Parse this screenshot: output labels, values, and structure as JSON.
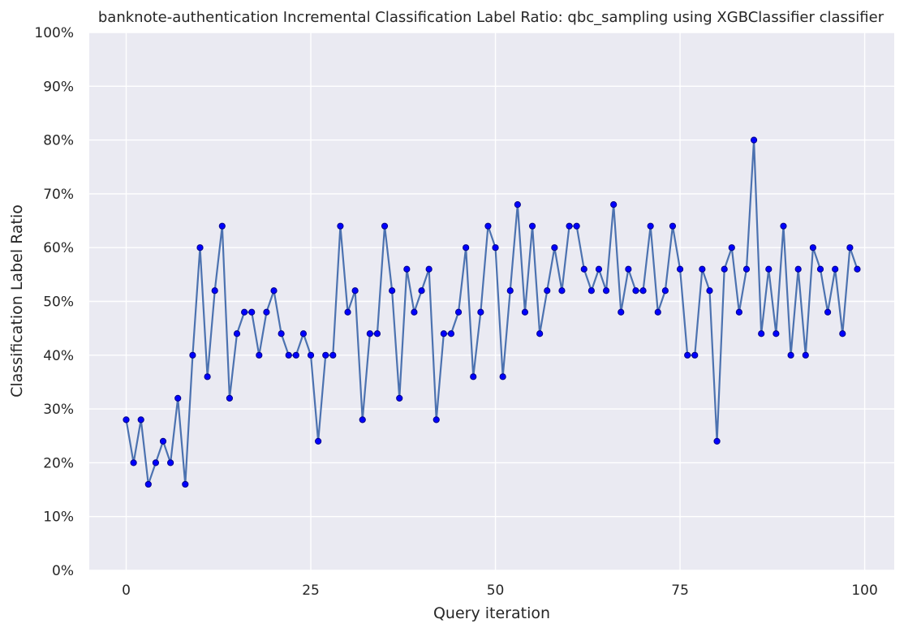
{
  "chart_data": {
    "type": "line",
    "title": "banknote-authentication Incremental Classification Label Ratio: qbc_sampling using XGBClassifier classifier",
    "xlabel": "Query iteration",
    "ylabel": "Classification Label Ratio",
    "xlim": [
      -5,
      104
    ],
    "ylim": [
      0,
      1
    ],
    "x_ticks": [
      0,
      25,
      50,
      75,
      100
    ],
    "x_tick_labels": [
      "0",
      "25",
      "50",
      "75",
      "100"
    ],
    "y_ticks": [
      0,
      0.1,
      0.2,
      0.3,
      0.4,
      0.5,
      0.6,
      0.7,
      0.8,
      0.9,
      1.0
    ],
    "y_tick_labels": [
      "0%",
      "10%",
      "20%",
      "30%",
      "40%",
      "50%",
      "60%",
      "70%",
      "80%",
      "90%",
      "100%"
    ],
    "grid": true,
    "colors": {
      "background": "#eaeaf2",
      "grid": "#ffffff",
      "line": "#4c72b0",
      "marker": "#0000ff",
      "marker_edge": "#00008b"
    },
    "series": [
      {
        "x": [
          0,
          1,
          2,
          3,
          4,
          5,
          6,
          7,
          8,
          9,
          10,
          11,
          12,
          13,
          14,
          15,
          16,
          17,
          18,
          19,
          20,
          21,
          22,
          23,
          24,
          25,
          26,
          27,
          28,
          29,
          30,
          31,
          32,
          33,
          34,
          35,
          36,
          37,
          38,
          39,
          40,
          41,
          42,
          43,
          44,
          45,
          46,
          47,
          48,
          49,
          50,
          51,
          52,
          53,
          54,
          55,
          56,
          57,
          58,
          59,
          60,
          61,
          62,
          63,
          64,
          65,
          66,
          67,
          68,
          69,
          70,
          71,
          72,
          73,
          74,
          75,
          76,
          77,
          78,
          79,
          80,
          81,
          82,
          83,
          84,
          85,
          86,
          87,
          88,
          89,
          90,
          91,
          92,
          93,
          94,
          95,
          96,
          97,
          98,
          99
        ],
        "values": [
          0.28,
          0.2,
          0.28,
          0.16,
          0.2,
          0.24,
          0.2,
          0.32,
          0.16,
          0.4,
          0.6,
          0.36,
          0.52,
          0.64,
          0.32,
          0.44,
          0.48,
          0.48,
          0.4,
          0.48,
          0.52,
          0.44,
          0.4,
          0.4,
          0.44,
          0.4,
          0.24,
          0.4,
          0.4,
          0.64,
          0.48,
          0.52,
          0.28,
          0.44,
          0.44,
          0.64,
          0.52,
          0.32,
          0.56,
          0.48,
          0.52,
          0.56,
          0.28,
          0.44,
          0.44,
          0.48,
          0.6,
          0.36,
          0.48,
          0.64,
          0.6,
          0.36,
          0.52,
          0.68,
          0.48,
          0.64,
          0.44,
          0.52,
          0.6,
          0.52,
          0.64,
          0.64,
          0.56,
          0.52,
          0.56,
          0.52,
          0.68,
          0.48,
          0.56,
          0.52,
          0.52,
          0.64,
          0.48,
          0.52,
          0.64,
          0.56,
          0.4,
          0.4,
          0.56,
          0.52,
          0.24,
          0.56,
          0.6,
          0.48,
          0.56,
          0.8,
          0.44,
          0.56,
          0.44,
          0.64,
          0.4,
          0.56,
          0.4,
          0.6,
          0.56,
          0.48,
          0.56,
          0.44,
          0.6,
          0.56
        ]
      }
    ]
  }
}
